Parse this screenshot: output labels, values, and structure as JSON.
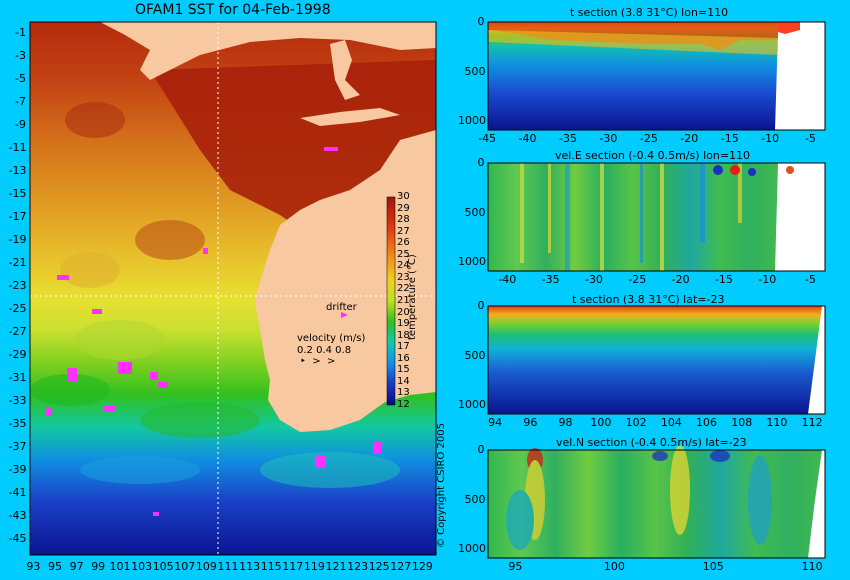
{
  "map": {
    "title": "OFAM1 SST for 04-Feb-1998",
    "lat_ticks": [
      "-1",
      "-3",
      "-5",
      "-7",
      "-9",
      "-11",
      "-13",
      "-15",
      "-17",
      "-19",
      "-21",
      "-23",
      "-25",
      "-27",
      "-29",
      "-31",
      "-33",
      "-35",
      "-37",
      "-39",
      "-41",
      "-43",
      "-45"
    ],
    "lon_ticks": [
      "93",
      "95",
      "97",
      "99",
      "101",
      "103",
      "105",
      "107",
      "109",
      "111",
      "113",
      "115",
      "117",
      "119",
      "121",
      "123",
      "125",
      "127",
      "129"
    ],
    "section_lon": 110,
    "section_lat": -23,
    "drifter_label": "drifter",
    "velocity_label": "velocity (m/s)",
    "velocity_values": "0.2 0.4 0.8",
    "colorbar": {
      "label": "temperature (°C)",
      "ticks": [
        "30",
        "29",
        "28",
        "27",
        "26",
        "25",
        "24",
        "23",
        "22",
        "21",
        "20",
        "19",
        "18",
        "17",
        "16",
        "15",
        "14",
        "13",
        "12"
      ]
    },
    "colors": {
      "land": "#f8c8a0",
      "warm": "#b01a06",
      "cool": "#0a1aa0",
      "background": "#00ccff"
    }
  },
  "copyright": "© Copyright CSIRO 2005",
  "panels": [
    {
      "title": "t section (3.8      31°C) lon=110",
      "x_ticks": [
        "-45",
        "-40",
        "-35",
        "-30",
        "-25",
        "-20",
        "-15",
        "-10",
        "-5"
      ],
      "y_ticks": [
        "0",
        "500",
        "1000"
      ]
    },
    {
      "title": "vel.E section (-0.4      0.5m/s) lon=110",
      "x_ticks": [
        "-40",
        "-35",
        "-30",
        "-25",
        "-20",
        "-15",
        "-10",
        "-5"
      ],
      "y_ticks": [
        "0",
        "500",
        "1000"
      ]
    },
    {
      "title": "t section (3.8      31°C) lat=-23",
      "x_ticks": [
        "94",
        "96",
        "98",
        "100",
        "102",
        "104",
        "106",
        "108",
        "110",
        "112"
      ],
      "y_ticks": [
        "0",
        "500",
        "1000"
      ]
    },
    {
      "title": "vel.N section (-0.4      0.5m/s) lat=-23",
      "x_ticks": [
        "95",
        "100",
        "105",
        "110"
      ],
      "y_ticks": [
        "0",
        "500",
        "1000"
      ]
    }
  ]
}
